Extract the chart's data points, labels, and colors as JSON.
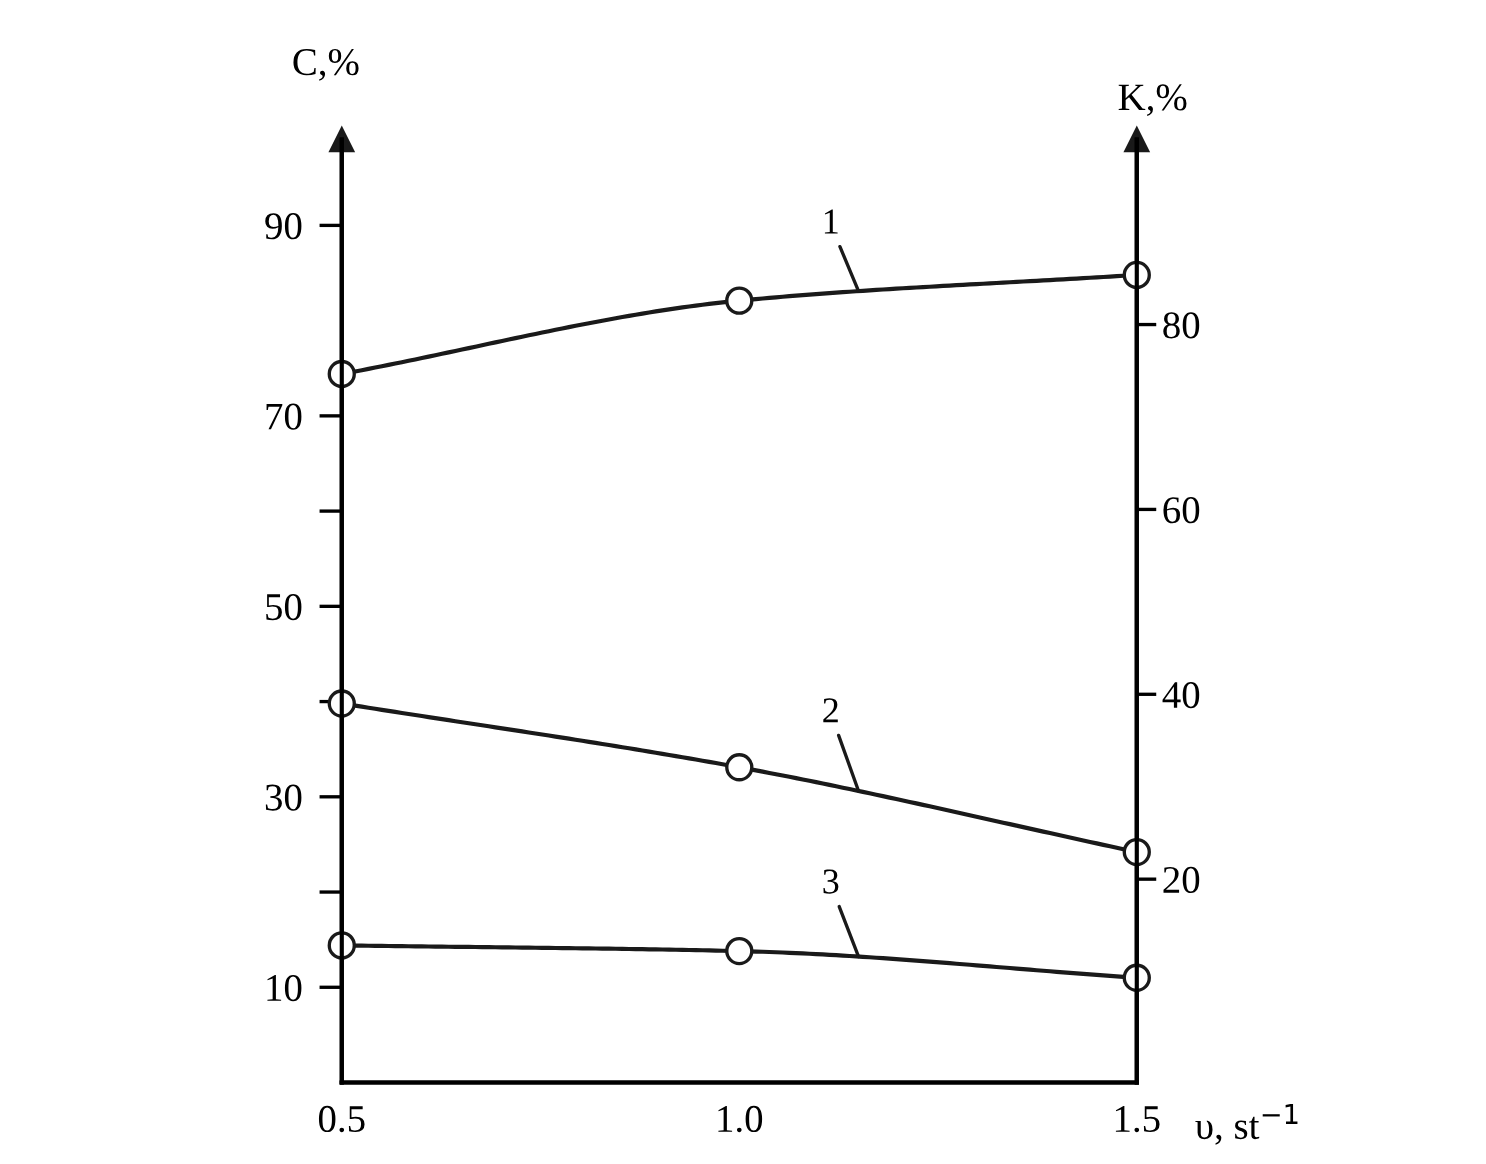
{
  "chart_data": {
    "type": "line",
    "xlabel": "υ, st$^{−1}$",
    "ylabel": "C,%",
    "y2label": "K,%",
    "x": [
      0.5,
      1.0,
      1.5
    ],
    "series": [
      {
        "name": "1",
        "color": "#1a1a1a",
        "values": [
          74.4,
          82.1,
          84.8
        ]
      },
      {
        "name": "2",
        "color": "#1a1a1a",
        "values": [
          39.8,
          33.1,
          24.2
        ]
      },
      {
        "name": "3",
        "color": "#1a1a1a",
        "values": [
          14.4,
          13.8,
          11
        ]
      }
    ],
    "xlim": [
      0.5,
      1.5
    ],
    "xticks": [
      0.5,
      {
        "value": 1,
        "label": "1.0"
      },
      1.5
    ],
    "ylim": [
      0,
      99
    ],
    "yticks": [
      10,
      {
        "value": 20,
        "label": null
      },
      30,
      {
        "value": 40,
        "label": null
      },
      50,
      {
        "value": 60,
        "label": null
      },
      70,
      90
    ],
    "y2lim": [
      -2,
      100
    ],
    "y2ticks": [
      20,
      40,
      60,
      80
    ],
    "marker": "circle",
    "line_style": "solid",
    "grid": false,
    "legend": false
  }
}
